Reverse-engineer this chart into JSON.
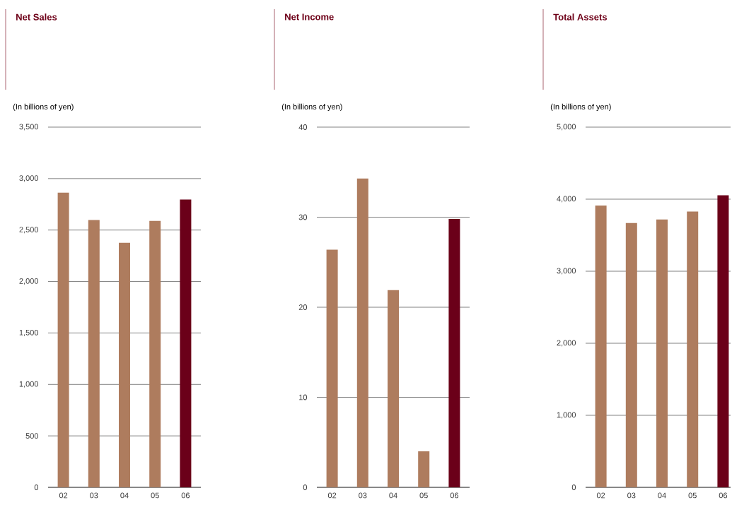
{
  "chart_data": [
    {
      "type": "bar",
      "title": "Net Sales",
      "ylabel": "(In billions of yen)",
      "categories": [
        "02",
        "03",
        "04",
        "05",
        "06"
      ],
      "values": [
        2863,
        2597,
        2377,
        2589,
        2797
      ],
      "colors": [
        "#ae7c5e",
        "#ae7c5e",
        "#ae7c5e",
        "#ae7c5e",
        "#6b0019"
      ],
      "ylim": [
        0,
        3500
      ],
      "yticks": [
        0,
        500,
        {
          "value": 1000,
          "label": "1,000"
        },
        {
          "value": 1500,
          "label": "1,500"
        },
        {
          "value": 2000,
          "label": "2,000"
        },
        {
          "value": 2500,
          "label": "2,500"
        },
        {
          "value": 3000,
          "label": "3,000"
        },
        {
          "value": 3500,
          "label": "3,500"
        }
      ],
      "grid": "y"
    },
    {
      "type": "bar",
      "title": "Net Income",
      "ylabel": "(In billions of yen)",
      "categories": [
        "02",
        "03",
        "04",
        "05",
        "06"
      ],
      "values": [
        26.4,
        34.3,
        21.9,
        4.0,
        29.8
      ],
      "colors": [
        "#ae7c5e",
        "#ae7c5e",
        "#ae7c5e",
        "#ae7c5e",
        "#6b0019"
      ],
      "ylim": [
        0,
        40
      ],
      "yticks": [
        0,
        10,
        20,
        30,
        40
      ],
      "grid": "y"
    },
    {
      "type": "bar",
      "title": "Total Assets",
      "ylabel": "(In billions of yen)",
      "categories": [
        "02",
        "03",
        "04",
        "05",
        "06"
      ],
      "values": [
        3913,
        3668,
        3719,
        3828,
        4053
      ],
      "colors": [
        "#ae7c5e",
        "#ae7c5e",
        "#ae7c5e",
        "#ae7c5e",
        "#6b0019"
      ],
      "ylim": [
        0,
        5000
      ],
      "yticks": [
        0,
        {
          "value": 1000,
          "label": "1,000"
        },
        {
          "value": 2000,
          "label": "2,000"
        },
        {
          "value": 3000,
          "label": "3,000"
        },
        {
          "value": 4000,
          "label": "4,000"
        },
        {
          "value": 5000,
          "label": "5,000"
        }
      ],
      "grid": "y"
    }
  ]
}
